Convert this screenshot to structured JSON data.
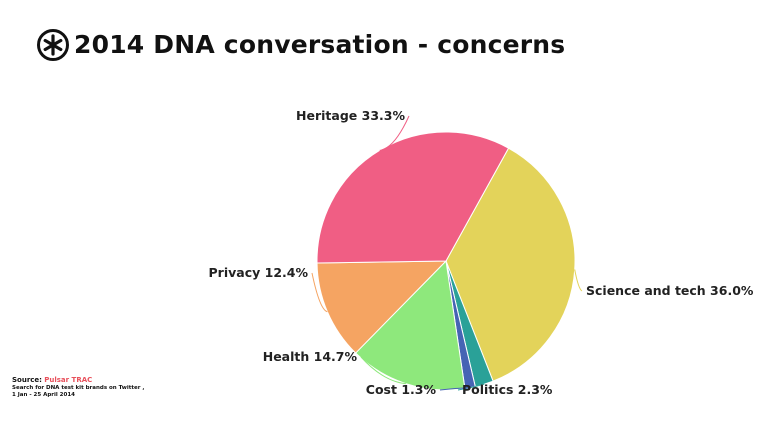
{
  "header": {
    "title": "2014 DNA conversation - concerns"
  },
  "source": {
    "label": "Source:",
    "name": "Pulsar TRAC",
    "desc_line1": "Search for DNA test kit brands on Twitter ,",
    "desc_line2": "1 Jan - 25 April 2014"
  },
  "colors": {
    "accent": "#e8505b"
  },
  "chart_data": {
    "type": "pie",
    "title": "2014 DNA conversation - concerns",
    "slices": [
      {
        "label": "Science and tech",
        "value": 36.0,
        "display": "Science and tech 36.0%",
        "color": "#e3d35a"
      },
      {
        "label": "Politics",
        "value": 2.3,
        "display": "Politics 2.3%",
        "color": "#2aa198"
      },
      {
        "label": "Cost",
        "value": 1.3,
        "display": "Cost 1.3%",
        "color": "#4664b4"
      },
      {
        "label": "Health",
        "value": 14.7,
        "display": "Health 14.7%",
        "color": "#8ee87c"
      },
      {
        "label": "Privacy",
        "value": 12.4,
        "display": "Privacy 12.4%",
        "color": "#f5a462"
      },
      {
        "label": "Heritage",
        "value": 33.3,
        "display": "Heritage 33.3%",
        "color": "#f05e84"
      }
    ]
  }
}
